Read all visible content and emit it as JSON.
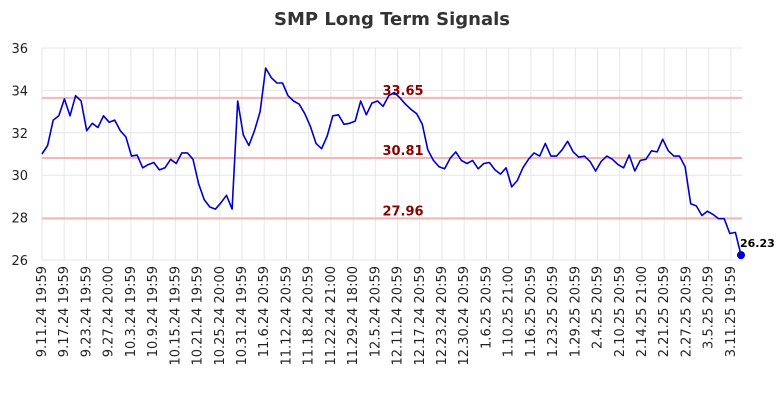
{
  "chart_data": {
    "type": "line",
    "title": "SMP Long Term Signals",
    "ylim": [
      26,
      36
    ],
    "yticks": [
      "26",
      "28",
      "30",
      "32",
      "34",
      "36"
    ],
    "xtick_labels": [
      "9.11.24 19:59",
      "9.17.24 19:59",
      "9.23.24 19:59",
      "9.27.24 20:00",
      "10.3.24 19:59",
      "10.9.24 19:59",
      "10.15.24 19:59",
      "10.21.24 19:59",
      "10.25.24 20:00",
      "10.31.24 19:59",
      "11.6.24 20:59",
      "11.12.24 20:59",
      "11.18.24 20:59",
      "11.22.24 21:00",
      "11.29.24 18:00",
      "12.5.24 20:59",
      "12.11.24 20:59",
      "12.17.24 20:59",
      "12.23.24 20:59",
      "12.30.24 20:59",
      "1.6.25 20:59",
      "1.10.25 21:00",
      "1.16.25 20:59",
      "1.23.25 20:59",
      "1.29.25 20:59",
      "2.4.25 20:59",
      "2.10.25 20:59",
      "2.14.25 21:00",
      "2.21.25 20:59",
      "2.27.25 20:59",
      "3.5.25 20:59",
      "3.11.25 19:59"
    ],
    "reference_lines": [
      {
        "value": 33.65,
        "label": "33.65"
      },
      {
        "value": 30.81,
        "label": "30.81"
      },
      {
        "value": 27.96,
        "label": "27.96"
      }
    ],
    "series": [
      {
        "color": "#0000cc",
        "values": [
          31.0,
          31.4,
          32.6,
          32.8,
          33.6,
          32.8,
          33.75,
          33.5,
          32.1,
          32.45,
          32.25,
          32.8,
          32.5,
          32.6,
          32.1,
          31.8,
          30.9,
          30.95,
          30.35,
          30.5,
          30.6,
          30.25,
          30.35,
          30.75,
          30.55,
          31.05,
          31.05,
          30.75,
          29.6,
          28.85,
          28.5,
          28.4,
          28.7,
          29.05,
          28.4,
          33.5,
          31.9,
          31.4,
          32.1,
          33.0,
          35.05,
          34.6,
          34.35,
          34.35,
          33.75,
          33.5,
          33.35,
          32.9,
          32.3,
          31.5,
          31.25,
          31.85,
          32.8,
          32.85,
          32.4,
          32.45,
          32.55,
          33.5,
          32.85,
          33.4,
          33.5,
          33.25,
          33.75,
          33.9,
          33.65,
          33.35,
          33.1,
          32.9,
          32.4,
          31.2,
          30.7,
          30.4,
          30.3,
          30.8,
          31.1,
          30.7,
          30.55,
          30.7,
          30.3,
          30.55,
          30.6,
          30.25,
          30.05,
          30.35,
          29.45,
          29.75,
          30.35,
          30.75,
          31.05,
          30.9,
          31.5,
          30.9,
          30.9,
          31.2,
          31.6,
          31.1,
          30.85,
          30.9,
          30.65,
          30.2,
          30.65,
          30.9,
          30.75,
          30.5,
          30.35,
          30.95,
          30.2,
          30.7,
          30.75,
          31.15,
          31.1,
          31.7,
          31.15,
          30.9,
          30.9,
          30.4,
          28.65,
          28.55,
          28.1,
          28.3,
          28.15,
          27.95,
          27.95,
          27.25,
          27.3,
          26.23
        ],
        "last_value_label": "26.23"
      }
    ]
  }
}
